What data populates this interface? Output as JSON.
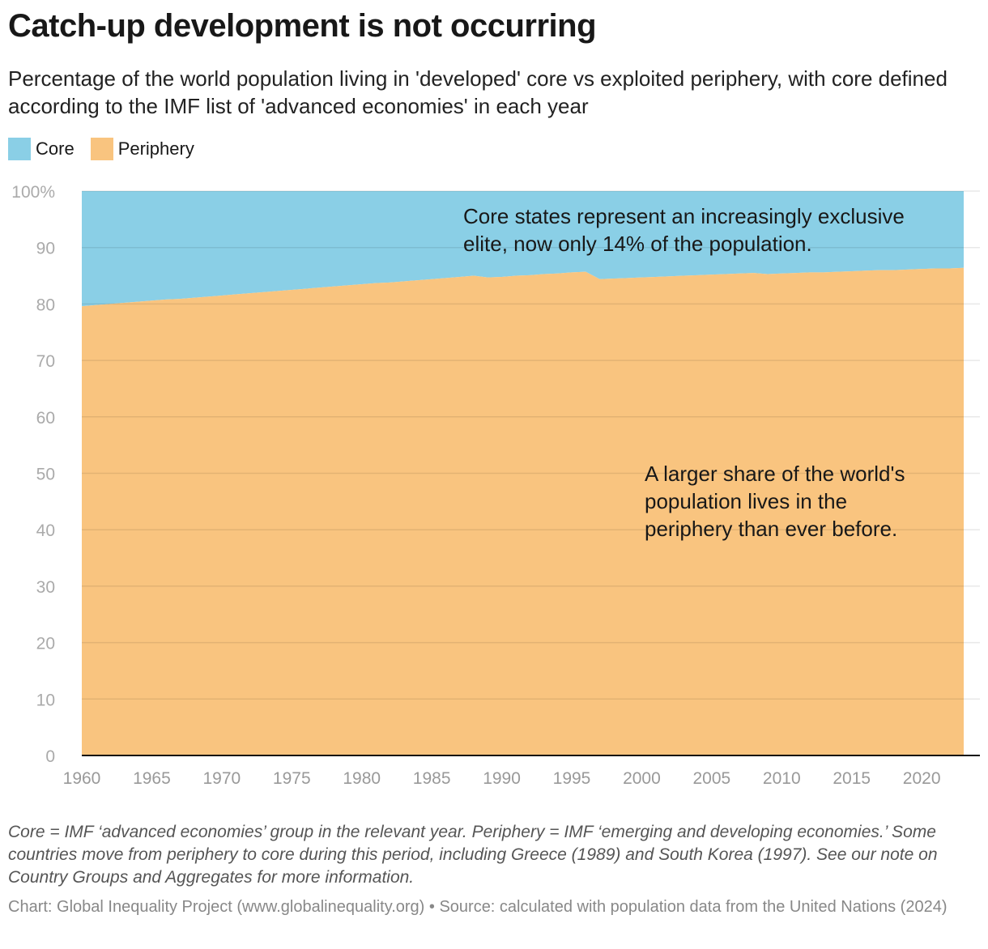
{
  "header": {
    "title": "Catch-up development is not occurring",
    "subtitle": "Percentage of the world population living in 'developed' core vs exploited periphery, with core defined according to the IMF list of 'advanced economies' in each year"
  },
  "footer": {
    "note": "Core = IMF ‘advanced economies’ group in the relevant year. Periphery = IMF ‘emerging and developing economies.’ Some countries move from periphery to core during this period, including Greece (1989) and South Korea (1997). See our note on Country Groups and Aggregates for more information.",
    "credit": "Chart: Global Inequality Project (www.globalinequality.org) • Source: calculated with population data from the United Nations (2024)"
  },
  "chart_data": {
    "type": "area",
    "stacked": true,
    "title": "Catch-up development is not occurring",
    "xlabel": "",
    "ylabel": "",
    "xlim": [
      1960,
      2023
    ],
    "ylim": [
      0,
      100
    ],
    "yticks": [
      0,
      10,
      20,
      30,
      40,
      50,
      60,
      70,
      80,
      90,
      100
    ],
    "ytick_labels": [
      "0",
      "10",
      "20",
      "30",
      "40",
      "50",
      "60",
      "70",
      "80",
      "90",
      "100%"
    ],
    "xticks": [
      1960,
      1965,
      1970,
      1975,
      1980,
      1985,
      1990,
      1995,
      2000,
      2005,
      2010,
      2015,
      2020
    ],
    "grid": true,
    "legend_placement": "top-left",
    "legend": [
      {
        "name": "Core",
        "color": "#8ACFE6"
      },
      {
        "name": "Periphery",
        "color": "#F9C47F"
      }
    ],
    "x": [
      1960,
      1961,
      1962,
      1963,
      1964,
      1965,
      1966,
      1967,
      1968,
      1969,
      1970,
      1971,
      1972,
      1973,
      1974,
      1975,
      1976,
      1977,
      1978,
      1979,
      1980,
      1981,
      1982,
      1983,
      1984,
      1985,
      1986,
      1987,
      1988,
      1989,
      1990,
      1991,
      1992,
      1993,
      1994,
      1995,
      1996,
      1997,
      1998,
      1999,
      2000,
      2001,
      2002,
      2003,
      2004,
      2005,
      2006,
      2007,
      2008,
      2009,
      2010,
      2011,
      2012,
      2013,
      2014,
      2015,
      2016,
      2017,
      2018,
      2019,
      2020,
      2021,
      2022,
      2023
    ],
    "series": [
      {
        "name": "Periphery",
        "color": "#F9C47F",
        "values": [
          79.6,
          79.8,
          80.0,
          80.2,
          80.4,
          80.6,
          80.8,
          80.9,
          81.1,
          81.3,
          81.5,
          81.7,
          81.9,
          82.1,
          82.3,
          82.5,
          82.7,
          82.9,
          83.1,
          83.3,
          83.5,
          83.7,
          83.8,
          84.0,
          84.2,
          84.4,
          84.6,
          84.8,
          85.0,
          84.7,
          84.8,
          85.0,
          85.1,
          85.3,
          85.4,
          85.6,
          85.7,
          84.4,
          84.5,
          84.6,
          84.7,
          84.8,
          84.9,
          85.0,
          85.1,
          85.2,
          85.3,
          85.4,
          85.5,
          85.3,
          85.4,
          85.5,
          85.6,
          85.6,
          85.7,
          85.8,
          85.9,
          86.0,
          86.0,
          86.1,
          86.2,
          86.3,
          86.3,
          86.4
        ]
      },
      {
        "name": "Core",
        "color": "#8ACFE6",
        "values": [
          20.4,
          20.2,
          20.0,
          19.8,
          19.6,
          19.4,
          19.2,
          19.1,
          18.9,
          18.7,
          18.5,
          18.3,
          18.1,
          17.9,
          17.7,
          17.5,
          17.3,
          17.1,
          16.9,
          16.7,
          16.5,
          16.3,
          16.2,
          16.0,
          15.8,
          15.6,
          15.4,
          15.2,
          15.0,
          15.3,
          15.2,
          15.0,
          14.9,
          14.7,
          14.6,
          14.4,
          14.3,
          15.6,
          15.5,
          15.4,
          15.3,
          15.2,
          15.1,
          15.0,
          14.9,
          14.8,
          14.7,
          14.6,
          14.5,
          14.7,
          14.6,
          14.5,
          14.4,
          14.4,
          14.3,
          14.2,
          14.1,
          14.0,
          14.0,
          13.9,
          13.8,
          13.7,
          13.7,
          13.6
        ]
      }
    ],
    "annotations": [
      "Core states represent an increasingly exclusive elite, now only 14% of the population.",
      "A larger share of the world's population lives in the periphery than ever before."
    ]
  }
}
